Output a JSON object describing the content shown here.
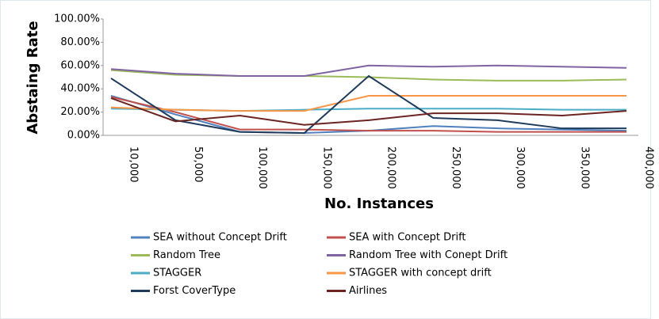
{
  "chart_data": {
    "type": "line",
    "x_label": "No. Instances",
    "y_label": "Abstaing Rate",
    "categories": [
      "10,000",
      "50,000",
      "100,000",
      "150,000",
      "200,000",
      "250,000",
      "300,000",
      "350,000",
      "400,000"
    ],
    "ylim": [
      0,
      100
    ],
    "yticks": [
      {
        "value": 0,
        "label": "0.00%"
      },
      {
        "value": 20,
        "label": "20.00%"
      },
      {
        "value": 40,
        "label": "40.00%"
      },
      {
        "value": 60,
        "label": "60.00%"
      },
      {
        "value": 80,
        "label": "80.00%"
      },
      {
        "value": 100,
        "label": "100.00%"
      }
    ],
    "series": [
      {
        "name": "SEA without Concept Drift",
        "color": "#4f81bd",
        "values": [
          34,
          18,
          3,
          2,
          4,
          8,
          6,
          5,
          4
        ]
      },
      {
        "name": "SEA with Concept Drift",
        "color": "#c0504d",
        "values": [
          33,
          20,
          5,
          5,
          4,
          4,
          3,
          3,
          3
        ]
      },
      {
        "name": "Random Tree",
        "color": "#9bbb59",
        "values": [
          56,
          52,
          51,
          51,
          50,
          48,
          47,
          47,
          48
        ]
      },
      {
        "name": "Random Tree with Conept Drift",
        "color": "#8064a2",
        "values": [
          57,
          53,
          51,
          51,
          60,
          59,
          60,
          59,
          58
        ]
      },
      {
        "name": "STAGGER",
        "color": "#4bacc6",
        "values": [
          23,
          22,
          21,
          22,
          23,
          23,
          23,
          22,
          22
        ]
      },
      {
        "name": "STAGGER with concept drift",
        "color": "#f79646",
        "values": [
          24,
          22,
          21,
          21,
          34,
          34,
          34,
          34,
          34
        ]
      },
      {
        "name": "Forst CoverType",
        "color": "#1f3b5c",
        "values": [
          49,
          13,
          3,
          2,
          51,
          15,
          13,
          6,
          6
        ]
      },
      {
        "name": "Airlines",
        "color": "#6b2422",
        "values": [
          32,
          12,
          17,
          9,
          13,
          19,
          19,
          17,
          21
        ]
      }
    ]
  }
}
